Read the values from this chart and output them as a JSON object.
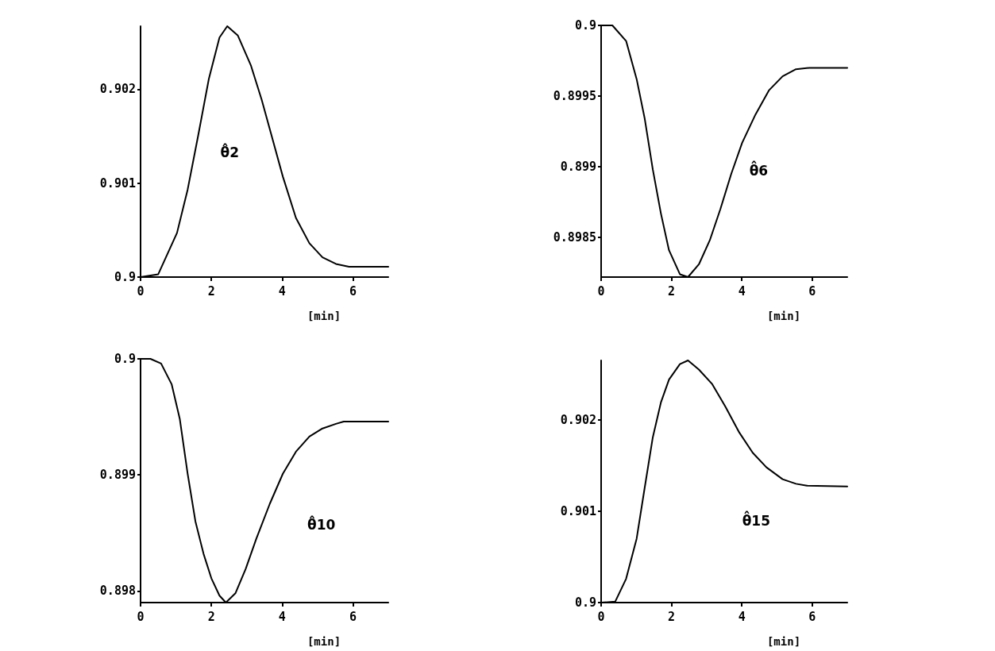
{
  "chart_data": [
    {
      "type": "line",
      "xlabel": "[min]",
      "xlim": [
        0,
        7
      ],
      "xticks": [
        0,
        2,
        4,
        6
      ],
      "ylim": [
        0.9,
        0.90267
      ],
      "yticks": [
        0.9,
        0.901,
        0.902
      ],
      "grid": false,
      "marker": "none",
      "line_style": "solid",
      "annotations": [
        "θ̂2"
      ],
      "series": [
        {
          "color": "#000000",
          "x": [
            0,
            0.5,
            1.03,
            1.33,
            1.63,
            1.93,
            2.23,
            2.45,
            2.75,
            3.12,
            3.42,
            3.72,
            4.02,
            4.39,
            4.77,
            5.14,
            5.52,
            5.89,
            7.0
          ],
          "values": [
            0.9,
            0.90003,
            0.90047,
            0.90093,
            0.90151,
            0.90211,
            0.90255,
            0.90267,
            0.90257,
            0.90225,
            0.90189,
            0.90148,
            0.90107,
            0.90063,
            0.90036,
            0.90021,
            0.90014,
            0.90011,
            0.90011
          ]
        }
      ]
    },
    {
      "type": "line",
      "xlabel": "[min]",
      "xlim": [
        0,
        7
      ],
      "xticks": [
        0,
        2,
        4,
        6
      ],
      "ylim": [
        0.89822,
        0.9
      ],
      "yticks": [
        0.8985,
        0.899,
        0.8995,
        0.9
      ],
      "grid": false,
      "marker": "none",
      "line_style": "solid",
      "annotations": [
        "θ̂6"
      ],
      "series": [
        {
          "color": "#000000",
          "x": [
            0,
            0.32,
            0.71,
            1.01,
            1.24,
            1.47,
            1.7,
            1.93,
            2.24,
            2.47,
            2.78,
            3.09,
            3.39,
            3.7,
            4.01,
            4.39,
            4.77,
            5.16,
            5.54,
            5.92,
            7.0
          ],
          "values": [
            0.9,
            0.9,
            0.89989,
            0.89962,
            0.89934,
            0.89898,
            0.89867,
            0.89841,
            0.89824,
            0.89822,
            0.89831,
            0.89848,
            0.8987,
            0.89895,
            0.89917,
            0.89937,
            0.89954,
            0.89964,
            0.89969,
            0.8997,
            0.8997
          ]
        }
      ]
    },
    {
      "type": "line",
      "xlabel": "[min]",
      "xlim": [
        0,
        7
      ],
      "xticks": [
        0,
        2,
        4,
        6
      ],
      "ylim": [
        0.8979,
        0.9
      ],
      "yticks": [
        0.898,
        0.899,
        0.9
      ],
      "grid": false,
      "marker": "none",
      "line_style": "solid",
      "annotations": [
        "θ̂10"
      ],
      "series": [
        {
          "color": "#000000",
          "x": [
            0,
            0.28,
            0.58,
            0.88,
            1.11,
            1.33,
            1.55,
            1.78,
            2.0,
            2.23,
            2.41,
            2.68,
            2.97,
            3.27,
            3.65,
            4.02,
            4.39,
            4.77,
            5.14,
            5.52,
            5.74,
            7.0
          ],
          "values": [
            0.9,
            0.9,
            0.89996,
            0.89978,
            0.89948,
            0.89901,
            0.8986,
            0.89832,
            0.89811,
            0.89796,
            0.8979,
            0.89798,
            0.89819,
            0.89845,
            0.89875,
            0.89901,
            0.8992,
            0.89933,
            0.8994,
            0.89944,
            0.89946,
            0.89946
          ]
        }
      ]
    },
    {
      "type": "line",
      "xlabel": "[min]",
      "xlim": [
        0,
        7
      ],
      "xticks": [
        0,
        2,
        4,
        6
      ],
      "ylim": [
        0.9,
        0.90265
      ],
      "yticks": [
        0.9,
        0.901,
        0.902
      ],
      "grid": false,
      "marker": "none",
      "line_style": "solid",
      "annotations": [
        "θ̂15"
      ],
      "series": [
        {
          "color": "#000000",
          "x": [
            0,
            0.4,
            0.71,
            1.01,
            1.24,
            1.47,
            1.7,
            1.93,
            2.24,
            2.47,
            2.78,
            3.16,
            3.54,
            3.93,
            4.31,
            4.7,
            5.16,
            5.54,
            5.85,
            7.0
          ],
          "values": [
            0.9,
            0.90001,
            0.90026,
            0.9007,
            0.90126,
            0.90181,
            0.90219,
            0.90244,
            0.90261,
            0.90265,
            0.90255,
            0.90239,
            0.90214,
            0.90186,
            0.90164,
            0.90148,
            0.90135,
            0.9013,
            0.90128,
            0.90127
          ]
        }
      ]
    }
  ]
}
